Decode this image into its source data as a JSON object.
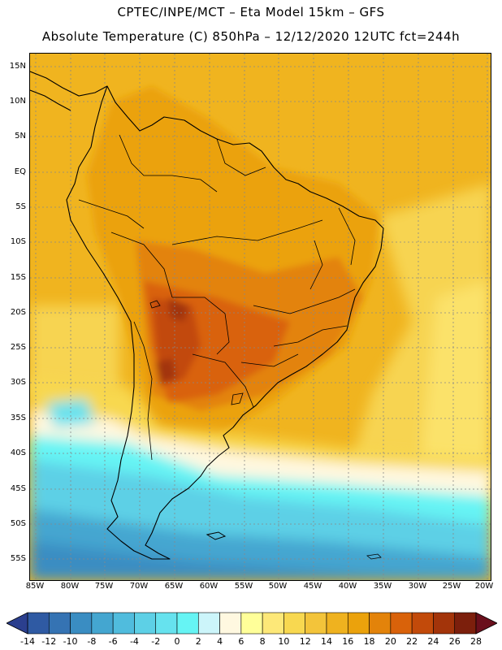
{
  "header": {
    "line1": "CPTEC/INPE/MCT –   Eta Model 15km – GFS",
    "line2": "Absolute Temperature (C) 850hPa – 12/12/2020 12UTC fct=244h"
  },
  "map": {
    "lat_labels": [
      "15N",
      "10N",
      "5N",
      "EQ",
      "5S",
      "10S",
      "15S",
      "20S",
      "25S",
      "30S",
      "35S",
      "40S",
      "45S",
      "50S",
      "55S"
    ],
    "lon_labels": [
      "85W",
      "80W",
      "75W",
      "70W",
      "65W",
      "60W",
      "55W",
      "50W",
      "45W",
      "40W",
      "35W",
      "30W",
      "25W",
      "20W"
    ],
    "grid": "dotted"
  },
  "colorbar": {
    "labels": [
      "-14",
      "-12",
      "-10",
      "-8",
      "-6",
      "-4",
      "-2",
      "0",
      "2",
      "4",
      "6",
      "8",
      "10",
      "12",
      "14",
      "16",
      "18",
      "20",
      "22",
      "24",
      "26",
      "28"
    ],
    "colors": [
      "#2b3f8e",
      "#2f5aa3",
      "#3573b3",
      "#3a8dc2",
      "#44a6d0",
      "#50bcdd",
      "#5dd0e6",
      "#66e2ee",
      "#66f4f4",
      "#ccf5fa",
      "#fff8e0",
      "#ffff99",
      "#fde878",
      "#f8d850",
      "#f3c43a",
      "#efb21f",
      "#eba20c",
      "#e3830a",
      "#d9620a",
      "#c24a0a",
      "#a3340a",
      "#7c1f0c",
      "#6a0f1c"
    ]
  }
}
